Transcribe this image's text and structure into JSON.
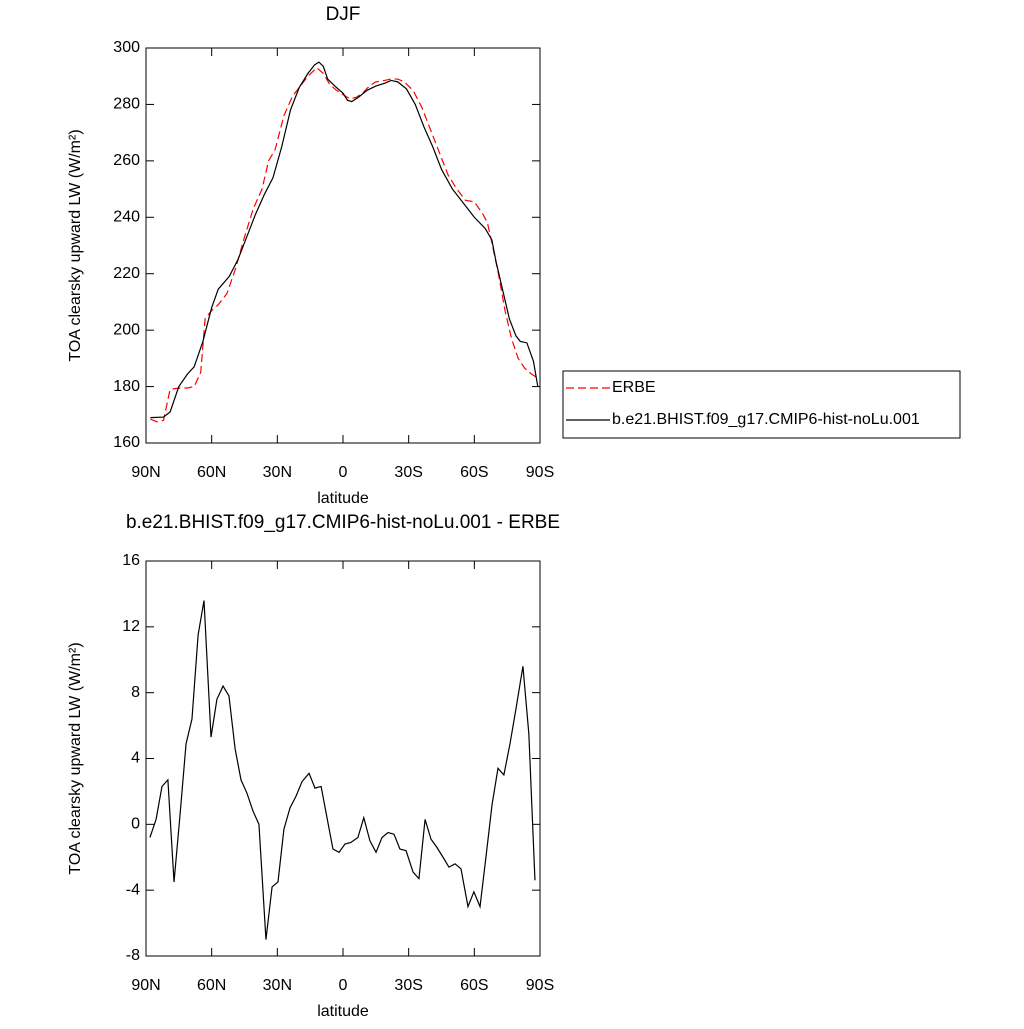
{
  "chart_data": [
    {
      "type": "line",
      "title": "DJF",
      "xlabel": "latitude",
      "ylabel": "TOA clearsky upward LW (W/m²)",
      "xlim": [
        90,
        -90
      ],
      "xticks": [
        {
          "value": 90,
          "label": "90N"
        },
        {
          "value": 60,
          "label": "60N"
        },
        {
          "value": 30,
          "label": "30N"
        },
        0,
        {
          "value": -30,
          "label": "30S"
        },
        {
          "value": -60,
          "label": "60S"
        },
        {
          "value": -90,
          "label": "90S"
        }
      ],
      "ylim": [
        160,
        300
      ],
      "yticks": [
        160,
        180,
        200,
        220,
        240,
        260,
        280,
        300
      ],
      "legend": "right",
      "series": [
        {
          "name": "ERBE",
          "color": "#ff0000",
          "dash": true,
          "x": [
            88,
            85,
            82,
            79,
            75,
            71,
            68,
            65,
            63,
            60,
            57,
            53,
            49,
            45,
            41,
            37,
            34,
            31,
            27,
            23,
            19,
            16,
            12,
            9,
            6,
            3,
            0,
            -3,
            -6,
            -9,
            -12,
            -15,
            -19,
            -22,
            -25,
            -28,
            -32,
            -36,
            -40,
            -44,
            -48,
            -52,
            -56,
            -60,
            -64,
            -66,
            -68,
            -71,
            -74,
            -77,
            -80,
            -83,
            -86,
            -89
          ],
          "values": [
            168.5,
            167.5,
            168,
            179,
            179.5,
            179.5,
            180,
            185,
            204,
            207,
            209,
            213,
            222,
            233,
            243,
            250,
            260,
            264,
            276,
            283,
            287,
            290,
            293,
            291,
            287,
            285,
            283.5,
            282,
            282.5,
            284,
            286.5,
            288,
            288.5,
            289,
            289,
            288,
            285,
            279,
            271,
            263,
            255,
            250,
            246,
            245.5,
            241,
            238,
            231,
            220,
            207,
            197,
            190,
            186.5,
            184.5,
            183
          ]
        },
        {
          "name": "b.e21.BHIST.f09_g17.CMIP6-hist-noLu.001",
          "color": "#000000",
          "dash": false,
          "x": [
            88,
            82,
            79,
            75,
            71,
            68,
            64,
            60,
            57,
            52,
            48,
            44,
            40,
            36,
            32,
            28,
            24,
            20,
            16,
            13,
            11,
            9,
            7,
            3,
            0,
            -2,
            -4,
            -7,
            -11,
            -15,
            -19,
            -22,
            -25,
            -29,
            -33,
            -37,
            -41,
            -45,
            -50,
            -55,
            -60,
            -65,
            -68,
            -70,
            -73,
            -76,
            -79,
            -81,
            -84,
            -87,
            -89
          ],
          "values": [
            169,
            169.2,
            171,
            180,
            184.5,
            187,
            196,
            208,
            214.5,
            219,
            225,
            233,
            241,
            248,
            254,
            265,
            278,
            286,
            291,
            294,
            295,
            293.5,
            289,
            286,
            284,
            281.5,
            281,
            282.5,
            285,
            286.5,
            287.5,
            288.5,
            288,
            285.5,
            280,
            272,
            265,
            257,
            250,
            245,
            240,
            236,
            232,
            224,
            214,
            204,
            198,
            196,
            195.5,
            189,
            180
          ]
        }
      ]
    },
    {
      "type": "line",
      "title": "b.e21.BHIST.f09_g17.CMIP6-hist-noLu.001 - ERBE",
      "xlabel": "latitude",
      "ylabel": "TOA clearsky upward LW (W/m²)",
      "xlim": [
        90,
        -90
      ],
      "xticks": [
        {
          "value": 90,
          "label": "90N"
        },
        {
          "value": 60,
          "label": "60N"
        },
        {
          "value": 30,
          "label": "30N"
        },
        0,
        {
          "value": -30,
          "label": "30S"
        },
        {
          "value": -60,
          "label": "60S"
        },
        {
          "value": -90,
          "label": "90S"
        }
      ],
      "ylim": [
        -8,
        16
      ],
      "yticks": [
        -8,
        -4,
        0,
        4,
        8,
        12,
        16
      ],
      "color": "#000000",
      "x": [
        88.2,
        85.4,
        82.7,
        80,
        77.2,
        74.5,
        71.7,
        69,
        66.2,
        63.5,
        60.3,
        57.6,
        54.8,
        52.1,
        49.3,
        46.6,
        43.9,
        41.1,
        38.4,
        35.2,
        32.4,
        29.7,
        27,
        24.2,
        21.5,
        18.7,
        15.5,
        12.8,
        10,
        7.3,
        4.6,
        1.8,
        -0.9,
        -3.6,
        -6.8,
        -9.5,
        -12.3,
        -15.1,
        -17.8,
        -20.6,
        -23.3,
        -26,
        -28.8,
        -32,
        -34.7,
        -37.5,
        -40.2,
        -42.9,
        -45.7,
        -48.4,
        -51.2,
        -53.9,
        -57.1,
        -59.8,
        -62.6,
        -65.3,
        -68.1,
        -70.8,
        -73.5,
        -76.3,
        -79,
        -82.2,
        -84.9,
        -87.7
      ],
      "values": [
        -0.8,
        0.3,
        2.3,
        2.7,
        -3.5,
        0.5,
        4.9,
        6.4,
        11.5,
        13.6,
        5.3,
        7.6,
        8.4,
        7.8,
        4.6,
        2.7,
        1.9,
        0.8,
        0,
        -7,
        -3.8,
        -3.5,
        -0.3,
        1,
        1.7,
        2.6,
        3.1,
        2.2,
        2.3,
        0.4,
        -1.5,
        -1.7,
        -1.2,
        -1.1,
        -0.8,
        0.4,
        -1,
        -1.7,
        -0.8,
        -0.5,
        -0.6,
        -1.5,
        -1.6,
        -2.9,
        -3.3,
        0.3,
        -0.9,
        -1.4,
        -2,
        -2.6,
        -2.4,
        -2.7,
        -5,
        -4.1,
        -5,
        -2,
        1.2,
        3.4,
        3,
        4.9,
        7,
        9.6,
        5.5,
        -3.4
      ]
    }
  ]
}
